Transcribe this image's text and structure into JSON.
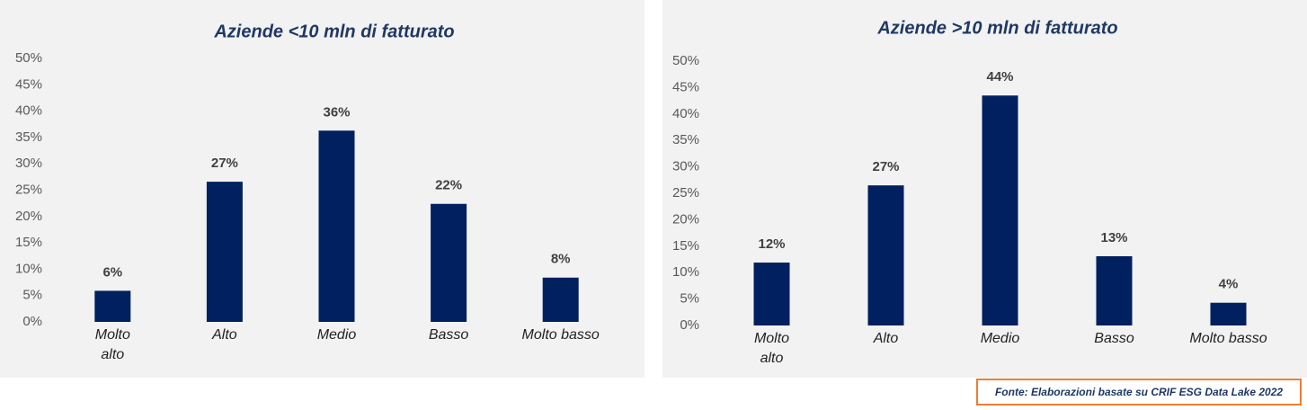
{
  "chart_data": [
    {
      "type": "bar",
      "title": "Aziende <10 mln di fatturato",
      "categories": [
        "Molto alto",
        "Alto",
        "Medio",
        "Basso",
        "Molto basso"
      ],
      "values": [
        5.9,
        26.6,
        36.3,
        22.4,
        8.4
      ],
      "value_labels": [
        "6%",
        "27%",
        "36%",
        "22%",
        "8%"
      ],
      "color": "#002060",
      "title_color": "#1f3864",
      "ylim": [
        0,
        50
      ],
      "yticks": [
        {
          "value": 0,
          "label": "0%"
        },
        {
          "value": 5,
          "label": "5%"
        },
        {
          "value": 10,
          "label": "10%"
        },
        {
          "value": 15,
          "label": "15%"
        },
        {
          "value": 20,
          "label": "20%"
        },
        {
          "value": 25,
          "label": "25%"
        },
        {
          "value": 30,
          "label": "30%"
        },
        {
          "value": 35,
          "label": "35%"
        },
        {
          "value": 40,
          "label": "40%"
        },
        {
          "value": 45,
          "label": "45%"
        },
        {
          "value": 50,
          "label": "50%"
        }
      ],
      "grid": false
    },
    {
      "type": "bar",
      "title": "Aziende >10 mln di fatturato",
      "categories": [
        "Molto alto",
        "Alto",
        "Medio",
        "Basso",
        "Molto basso"
      ],
      "values": [
        11.9,
        26.5,
        43.5,
        13.1,
        4.3
      ],
      "value_labels": [
        "12%",
        "27%",
        "44%",
        "13%",
        "4%"
      ],
      "color": "#002060",
      "title_color": "#1f3864",
      "ylim": [
        0,
        50
      ],
      "yticks": [
        {
          "value": 0,
          "label": "0%"
        },
        {
          "value": 5,
          "label": "5%"
        },
        {
          "value": 10,
          "label": "10%"
        },
        {
          "value": 15,
          "label": "15%"
        },
        {
          "value": 20,
          "label": "20%"
        },
        {
          "value": 25,
          "label": "25%"
        },
        {
          "value": 30,
          "label": "30%"
        },
        {
          "value": 35,
          "label": "35%"
        },
        {
          "value": 40,
          "label": "40%"
        },
        {
          "value": 45,
          "label": "45%"
        },
        {
          "value": 50,
          "label": "50%"
        }
      ],
      "grid": false
    }
  ],
  "source": "Fonte: Elaborazioni basate su CRIF ESG Data Lake 2022"
}
